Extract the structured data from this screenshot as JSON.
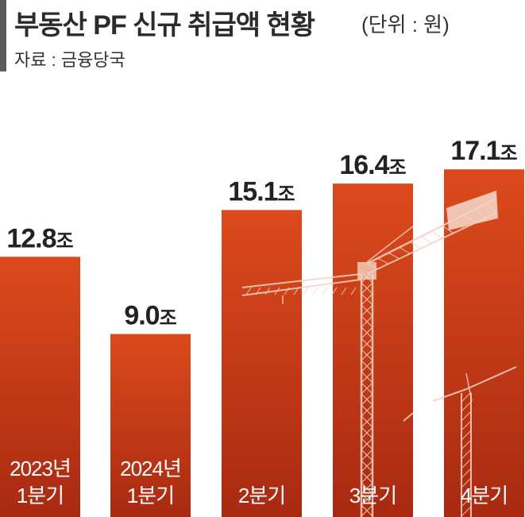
{
  "header": {
    "title": "부동산 PF 신규 취급액 현황",
    "unit": "(단위 : 원)",
    "source": "자료 : 금융당국"
  },
  "colors": {
    "bar_top": "#dc4a1c",
    "bar_bottom": "#a82a12",
    "crane": "#f3d2c2",
    "text_dark": "#222222",
    "category_text": "#ffffff"
  },
  "chart_data": {
    "type": "bar",
    "categories": [
      [
        "2023년",
        "1분기"
      ],
      [
        "2024년",
        "1분기"
      ],
      [
        "2분기"
      ],
      [
        "3분기"
      ],
      [
        "4분기"
      ]
    ],
    "values": [
      12.8,
      9.0,
      15.1,
      16.4,
      17.1
    ],
    "value_labels": [
      "12.8조",
      "9.0조",
      "15.1조",
      "16.4조",
      "17.1조"
    ],
    "title": "부동산 PF 신규 취급액 현황",
    "ylabel": "",
    "xlabel": "",
    "legend": "none",
    "grid": false
  }
}
